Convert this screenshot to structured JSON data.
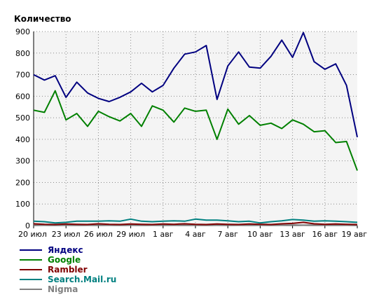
{
  "chart_data": {
    "type": "line",
    "title": "Количество",
    "ylim": [
      0,
      900
    ],
    "yticks": [
      0,
      100,
      200,
      300,
      400,
      500,
      600,
      700,
      800,
      900
    ],
    "grid": true,
    "x_tick_labels": [
      {
        "i": 0,
        "label": "20 июл"
      },
      {
        "i": 3,
        "label": "23 июл"
      },
      {
        "i": 6,
        "label": "26 июл"
      },
      {
        "i": 9,
        "label": "29 июл"
      },
      {
        "i": 12,
        "label": "1 авг"
      },
      {
        "i": 15,
        "label": "4 авг"
      },
      {
        "i": 18,
        "label": "7 авг"
      },
      {
        "i": 21,
        "label": "10 авг"
      },
      {
        "i": 24,
        "label": "13 авг"
      },
      {
        "i": 27,
        "label": "16 авг"
      },
      {
        "i": 30,
        "label": "19 авг"
      }
    ],
    "legend_position": "bottom-left",
    "series": [
      {
        "name": "Яндекс",
        "color": "#000080",
        "values": [
          700,
          675,
          695,
          595,
          665,
          615,
          590,
          575,
          595,
          620,
          660,
          620,
          650,
          730,
          795,
          805,
          835,
          585,
          740,
          805,
          735,
          730,
          785,
          860,
          780,
          895,
          760,
          725,
          750,
          650,
          410
        ]
      },
      {
        "name": "Google",
        "color": "#008000",
        "values": [
          535,
          525,
          625,
          490,
          520,
          460,
          530,
          505,
          485,
          520,
          460,
          555,
          535,
          480,
          545,
          530,
          535,
          400,
          540,
          470,
          510,
          465,
          475,
          450,
          490,
          470,
          435,
          440,
          385,
          390,
          255
        ]
      },
      {
        "name": "Rambler",
        "color": "#800000",
        "values": [
          8,
          6,
          5,
          7,
          6,
          5,
          8,
          6,
          5,
          7,
          6,
          5,
          7,
          6,
          8,
          6,
          5,
          7,
          6,
          5,
          7,
          6,
          5,
          8,
          10,
          15,
          8,
          6,
          7,
          6,
          5
        ]
      },
      {
        "name": "Search.Mail.ru",
        "color": "#008080",
        "values": [
          20,
          18,
          12,
          15,
          20,
          20,
          20,
          22,
          20,
          30,
          20,
          18,
          20,
          22,
          20,
          30,
          25,
          25,
          22,
          18,
          20,
          12,
          18,
          22,
          28,
          25,
          20,
          22,
          20,
          18,
          15
        ]
      },
      {
        "name": "Nigma",
        "color": "#808080",
        "values": [
          3,
          2,
          3,
          2,
          3,
          2,
          3,
          2,
          3,
          2,
          3,
          2,
          3,
          2,
          3,
          2,
          3,
          2,
          3,
          2,
          3,
          2,
          3,
          2,
          3,
          2,
          3,
          2,
          3,
          2,
          3
        ]
      }
    ]
  }
}
